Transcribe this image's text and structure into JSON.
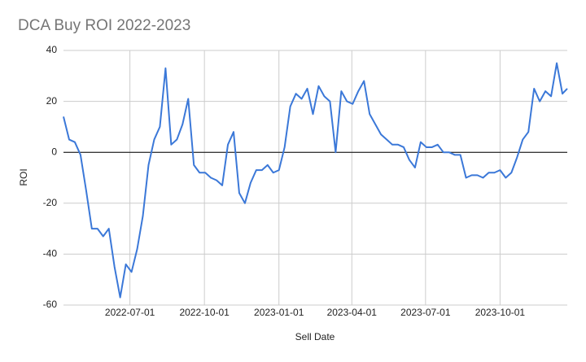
{
  "chart_data": {
    "type": "line",
    "title": "DCA Buy ROI 2022-2023",
    "x_label": "Sell Date",
    "y_label": "ROI",
    "x": [
      "2022-04-10",
      "2022-04-17",
      "2022-04-24",
      "2022-05-01",
      "2022-05-08",
      "2022-05-15",
      "2022-05-22",
      "2022-05-29",
      "2022-06-05",
      "2022-06-12",
      "2022-06-19",
      "2022-06-26",
      "2022-07-03",
      "2022-07-10",
      "2022-07-17",
      "2022-07-24",
      "2022-07-31",
      "2022-08-07",
      "2022-08-14",
      "2022-08-21",
      "2022-08-28",
      "2022-09-04",
      "2022-09-11",
      "2022-09-18",
      "2022-09-25",
      "2022-10-02",
      "2022-10-09",
      "2022-10-16",
      "2022-10-23",
      "2022-10-30",
      "2022-11-06",
      "2022-11-13",
      "2022-11-20",
      "2022-11-27",
      "2022-12-04",
      "2022-12-11",
      "2022-12-18",
      "2022-12-25",
      "2023-01-01",
      "2023-01-08",
      "2023-01-15",
      "2023-01-22",
      "2023-01-29",
      "2023-02-05",
      "2023-02-12",
      "2023-02-19",
      "2023-02-26",
      "2023-03-05",
      "2023-03-12",
      "2023-03-19",
      "2023-03-26",
      "2023-04-02",
      "2023-04-09",
      "2023-04-16",
      "2023-04-23",
      "2023-04-30",
      "2023-05-07",
      "2023-05-14",
      "2023-05-21",
      "2023-05-28",
      "2023-06-04",
      "2023-06-11",
      "2023-06-18",
      "2023-06-25",
      "2023-07-02",
      "2023-07-09",
      "2023-07-16",
      "2023-07-23",
      "2023-07-30",
      "2023-08-06",
      "2023-08-13",
      "2023-08-20",
      "2023-08-27",
      "2023-09-03",
      "2023-09-10",
      "2023-09-17",
      "2023-09-24",
      "2023-10-01",
      "2023-10-08",
      "2023-10-15",
      "2023-10-22",
      "2023-10-29",
      "2023-11-05",
      "2023-11-12",
      "2023-11-19",
      "2023-11-26",
      "2023-12-03",
      "2023-12-10",
      "2023-12-17",
      "2023-12-23"
    ],
    "series": [
      {
        "name": "ROI",
        "color": "#3b78d8",
        "values": [
          14,
          5,
          4,
          -1,
          -15,
          -30,
          -30,
          -33,
          -30,
          -45,
          -57,
          -44,
          -47,
          -38,
          -25,
          -5,
          5,
          10,
          33,
          3,
          5,
          11,
          21,
          -5,
          -8,
          -8,
          -10,
          -11,
          -13,
          3,
          8,
          -16,
          -20,
          -12,
          -7,
          -7,
          -5,
          -8,
          -7,
          2,
          18,
          23,
          21,
          25,
          15,
          26,
          22,
          20,
          0,
          24,
          20,
          19,
          24,
          28,
          15,
          11,
          7,
          5,
          3,
          3,
          2,
          -3,
          -6,
          4,
          2,
          2,
          3,
          0,
          0,
          -1,
          -1,
          -10,
          -9,
          -9,
          -10,
          -8,
          -8,
          -7,
          -10,
          -8,
          -2,
          5,
          8,
          25,
          20,
          24,
          22,
          35,
          23,
          25
        ]
      }
    ],
    "xlim": [
      "2022-04-10",
      "2023-12-23"
    ],
    "xticks": [
      "2022-07-01",
      "2022-10-01",
      "2023-01-01",
      "2023-04-01",
      "2023-07-01",
      "2023-10-01"
    ],
    "ylim": [
      -60,
      40
    ],
    "yticks": [
      -60,
      -40,
      -20,
      0,
      20,
      40
    ],
    "grid": true
  }
}
